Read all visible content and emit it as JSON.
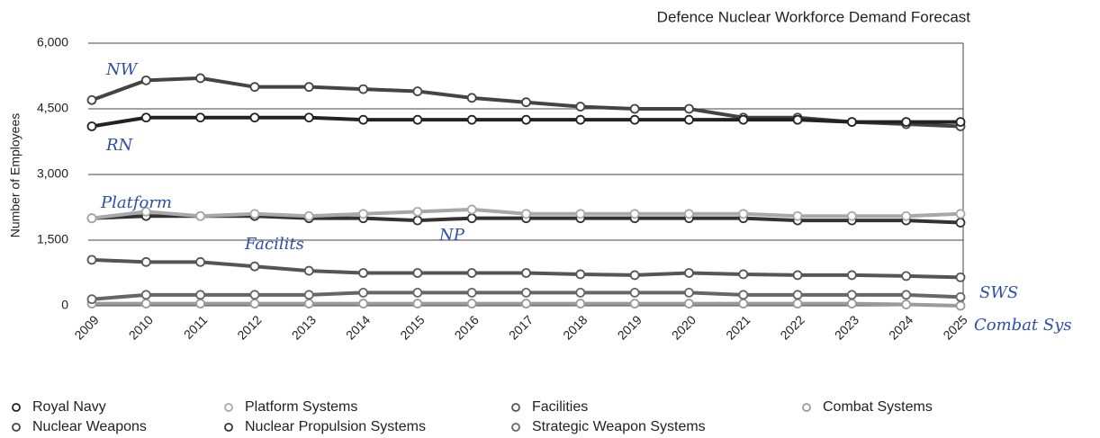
{
  "chart_data": {
    "type": "line",
    "title": "Defence Nuclear Workforce Demand Forecast",
    "y_label": "Number of Employees",
    "categories": [
      "2009",
      "2010",
      "2011",
      "2012",
      "2013",
      "2014",
      "2015",
      "2016",
      "2017",
      "2018",
      "2019",
      "2020",
      "2021",
      "2022",
      "2023",
      "2024",
      "2025"
    ],
    "ylim": [
      0,
      6000
    ],
    "yticks": [
      0,
      {
        "value": 1500,
        "label": "1,500"
      },
      {
        "value": 3000,
        "label": "3,000"
      },
      {
        "value": 4500,
        "label": "4,500"
      },
      {
        "value": 6000,
        "label": "6,000"
      }
    ],
    "grid": true,
    "series": [
      {
        "name": "Royal Navy",
        "color": "#222222",
        "values": [
          4100,
          4300,
          4300,
          4300,
          4300,
          4250,
          4250,
          4250,
          4250,
          4250,
          4250,
          4250,
          4250,
          4250,
          4200,
          4200,
          4200
        ]
      },
      {
        "name": "Nuclear Weapons",
        "color": "#444444",
        "values": [
          4700,
          5150,
          5200,
          5000,
          5000,
          4950,
          4900,
          4750,
          4650,
          4550,
          4500,
          4500,
          4300,
          4300,
          4200,
          4150,
          4100
        ]
      },
      {
        "name": "Platform Systems",
        "color": "#a8a8a8",
        "values": [
          2000,
          2150,
          2050,
          2100,
          2050,
          2100,
          2150,
          2200,
          2100,
          2100,
          2100,
          2100,
          2100,
          2050,
          2050,
          2050,
          2100
        ]
      },
      {
        "name": "Nuclear Propulsion Systems",
        "color": "#333333",
        "values": [
          2000,
          2050,
          2050,
          2050,
          2000,
          2000,
          1950,
          2000,
          2000,
          2000,
          2000,
          2000,
          2000,
          1950,
          1950,
          1950,
          1900
        ]
      },
      {
        "name": "Facilities",
        "color": "#555555",
        "values": [
          1050,
          1000,
          1000,
          900,
          800,
          750,
          750,
          750,
          750,
          720,
          700,
          750,
          720,
          700,
          700,
          680,
          650
        ]
      },
      {
        "name": "Strategic Weapon Systems",
        "color": "#666666",
        "values": [
          150,
          250,
          250,
          250,
          250,
          300,
          300,
          300,
          300,
          300,
          300,
          300,
          250,
          250,
          250,
          250,
          200
        ]
      },
      {
        "name": "Combat Systems",
        "color": "#9a9a9a",
        "values": [
          50,
          50,
          50,
          50,
          50,
          50,
          50,
          50,
          50,
          50,
          50,
          50,
          50,
          50,
          50,
          30,
          0
        ]
      }
    ],
    "annotations": [
      "NW",
      "RN",
      "Platform",
      "Facilits",
      "NP",
      "SWS",
      "Combat Sys"
    ]
  }
}
